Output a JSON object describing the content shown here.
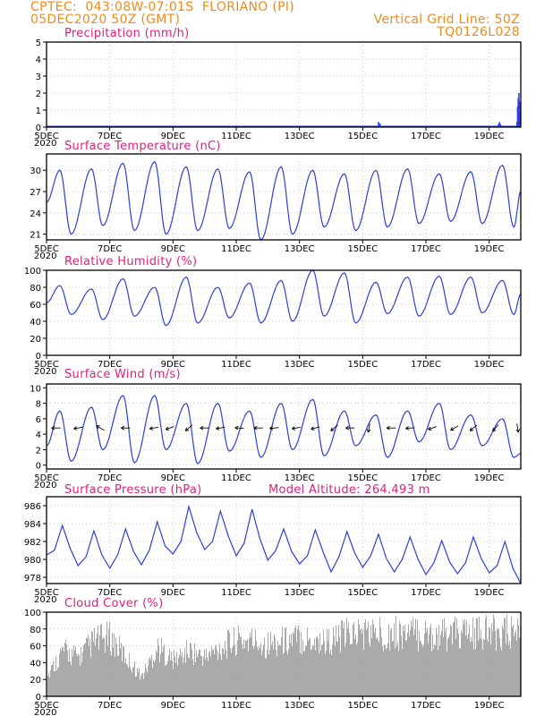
{
  "header": {
    "station_line": "CPTEC:  043:08W-07:01S  FLORIANO (PI)",
    "date_line": "05DEC2020 50Z (GMT)",
    "grid_note": "Vertical Grid Line: 50Z",
    "run_code": "TQ0126L028"
  },
  "x_tick_labels": [
    "5DEC",
    "7DEC",
    "9DEC",
    "11DEC",
    "13DEC",
    "15DEC",
    "17DEC",
    "19DEC"
  ],
  "x_year_label": "2020",
  "colors": {
    "header": "#f08a1e",
    "title": "#e0207a",
    "line": "#2b3fd8",
    "cloud": "#aaaaaa"
  },
  "chart_data": [
    {
      "type": "bar",
      "title": "Precipitation (mm/h)",
      "ylim": [
        0,
        5
      ],
      "yticks": [
        "0",
        "1",
        "2",
        "3",
        "4",
        "5"
      ],
      "x_days": [
        5.0,
        20.0
      ],
      "bars": [
        {
          "x": 15.5,
          "y": 0.3
        },
        {
          "x": 15.55,
          "y": 0.2
        },
        {
          "x": 18.0,
          "y": 0.05
        },
        {
          "x": 19.3,
          "y": 0.2
        },
        {
          "x": 19.33,
          "y": 0.3
        },
        {
          "x": 19.36,
          "y": 0.15
        },
        {
          "x": 19.88,
          "y": 0.3
        },
        {
          "x": 19.9,
          "y": 1.2
        },
        {
          "x": 19.92,
          "y": 1.7
        },
        {
          "x": 19.94,
          "y": 2.0
        },
        {
          "x": 19.96,
          "y": 1.5
        },
        {
          "x": 19.98,
          "y": 1.0
        }
      ]
    },
    {
      "type": "line",
      "title": "Surface Temperature (nC)",
      "ylim": [
        20.2,
        32.3
      ],
      "yticks": [
        "21",
        "24",
        "27",
        "30"
      ],
      "x_days": [
        5.0,
        20.0
      ],
      "maxima": [
        30.0,
        30.2,
        31.0,
        31.2,
        30.5,
        30.2,
        29.8,
        30.5,
        30.0,
        29.5,
        30.0,
        30.2,
        29.5,
        29.8,
        30.7
      ],
      "minima": [
        21.0,
        22.2,
        21.5,
        21.0,
        21.5,
        21.8,
        20.2,
        21.0,
        22.0,
        21.5,
        22.0,
        22.5,
        22.8,
        22.5,
        22.0
      ],
      "start": 25.5,
      "end": 27.0
    },
    {
      "type": "line",
      "title": "Relative Humidity (%)",
      "ylim": [
        0,
        100
      ],
      "yticks": [
        "0",
        "20",
        "40",
        "60",
        "80",
        "100"
      ],
      "x_days": [
        5.0,
        20.0
      ],
      "maxima": [
        82,
        78,
        90,
        80,
        92,
        80,
        85,
        88,
        100,
        97,
        86,
        92,
        93,
        92,
        88
      ],
      "minima": [
        48,
        42,
        46,
        35,
        38,
        44,
        38,
        40,
        46,
        38,
        49,
        46,
        48,
        50,
        48
      ],
      "start": 62,
      "end": 72
    },
    {
      "type": "line",
      "title": "Surface Wind (m/s)",
      "ylim": [
        -0.5,
        10.5
      ],
      "yticks": [
        "0",
        "2",
        "4",
        "6",
        "8",
        "10"
      ],
      "x_days": [
        5.0,
        20.0
      ],
      "maxima": [
        7.0,
        7.5,
        9.0,
        9.0,
        8.0,
        8.0,
        7.0,
        8.0,
        8.5,
        7.0,
        6.5,
        7.0,
        8.0,
        6.5,
        6.0
      ],
      "minima": [
        0.5,
        2.0,
        0.3,
        2.0,
        0.2,
        1.8,
        1.0,
        2.0,
        1.2,
        2.5,
        1.0,
        3.0,
        2.0,
        2.5,
        1.0
      ],
      "start": 2.5,
      "end": 1.5,
      "arrows": [
        {
          "day": 5.3,
          "dir": 270
        },
        {
          "day": 6.0,
          "dir": 260
        },
        {
          "day": 6.7,
          "dir": 300
        },
        {
          "day": 7.5,
          "dir": 270
        },
        {
          "day": 8.4,
          "dir": 260
        },
        {
          "day": 8.9,
          "dir": 250
        },
        {
          "day": 9.5,
          "dir": 230
        },
        {
          "day": 10.0,
          "dir": 270
        },
        {
          "day": 10.5,
          "dir": 260
        },
        {
          "day": 11.1,
          "dir": 275
        },
        {
          "day": 11.7,
          "dir": 270
        },
        {
          "day": 12.2,
          "dir": 265
        },
        {
          "day": 12.9,
          "dir": 260
        },
        {
          "day": 13.5,
          "dir": 255
        },
        {
          "day": 14.1,
          "dir": 230
        },
        {
          "day": 14.6,
          "dir": 270
        },
        {
          "day": 15.2,
          "dir": 190
        },
        {
          "day": 15.9,
          "dir": 270
        },
        {
          "day": 16.5,
          "dir": 265
        },
        {
          "day": 17.2,
          "dir": 250
        },
        {
          "day": 17.9,
          "dir": 240
        },
        {
          "day": 18.5,
          "dir": 230
        },
        {
          "day": 19.2,
          "dir": 220
        },
        {
          "day": 19.9,
          "dir": 170
        }
      ]
    },
    {
      "type": "line",
      "title": "Surface Pressure (hPa)",
      "extra_label": "Model Altitude: 264.493 m",
      "ylim": [
        977.3,
        987.0
      ],
      "yticks": [
        "978",
        "980",
        "982",
        "984",
        "986"
      ],
      "x_days": [
        5.0,
        20.0
      ],
      "points": [
        [
          5.0,
          980.5
        ],
        [
          5.25,
          981.0
        ],
        [
          5.5,
          983.8
        ],
        [
          5.75,
          981.2
        ],
        [
          6.0,
          979.3
        ],
        [
          6.25,
          980.3
        ],
        [
          6.5,
          983.2
        ],
        [
          6.75,
          980.5
        ],
        [
          7.0,
          979.0
        ],
        [
          7.25,
          980.5
        ],
        [
          7.5,
          983.4
        ],
        [
          7.75,
          980.9
        ],
        [
          8.0,
          979.4
        ],
        [
          8.25,
          981.0
        ],
        [
          8.5,
          984.2
        ],
        [
          8.75,
          981.5
        ],
        [
          9.0,
          980.6
        ],
        [
          9.25,
          982.0
        ],
        [
          9.5,
          985.9
        ],
        [
          9.75,
          983.0
        ],
        [
          10.0,
          981.1
        ],
        [
          10.25,
          982.0
        ],
        [
          10.5,
          985.4
        ],
        [
          10.75,
          982.6
        ],
        [
          11.0,
          980.4
        ],
        [
          11.25,
          981.8
        ],
        [
          11.5,
          985.6
        ],
        [
          11.75,
          982.3
        ],
        [
          12.0,
          979.9
        ],
        [
          12.25,
          981.0
        ],
        [
          12.5,
          983.4
        ],
        [
          12.75,
          980.9
        ],
        [
          13.0,
          979.5
        ],
        [
          13.25,
          980.4
        ],
        [
          13.5,
          983.3
        ],
        [
          13.75,
          980.8
        ],
        [
          14.0,
          978.6
        ],
        [
          14.25,
          980.3
        ],
        [
          14.5,
          983.1
        ],
        [
          14.75,
          980.7
        ],
        [
          15.0,
          979.1
        ],
        [
          15.25,
          980.4
        ],
        [
          15.5,
          982.8
        ],
        [
          15.75,
          980.1
        ],
        [
          16.0,
          978.6
        ],
        [
          16.25,
          980.0
        ],
        [
          16.5,
          982.5
        ],
        [
          16.75,
          980.0
        ],
        [
          17.0,
          978.3
        ],
        [
          17.25,
          979.6
        ],
        [
          17.5,
          982.1
        ],
        [
          17.75,
          979.7
        ],
        [
          18.0,
          978.4
        ],
        [
          18.25,
          979.6
        ],
        [
          18.5,
          982.5
        ],
        [
          18.75,
          980.1
        ],
        [
          19.0,
          978.5
        ],
        [
          19.25,
          979.3
        ],
        [
          19.5,
          982.0
        ],
        [
          19.75,
          979.0
        ],
        [
          20.0,
          977.3
        ]
      ]
    },
    {
      "type": "area",
      "title": "Cloud Cover (%)",
      "ylim": [
        0,
        100
      ],
      "yticks": [
        "0",
        "20",
        "40",
        "60",
        "80",
        "100"
      ],
      "x_days": [
        5.0,
        20.0
      ],
      "envelope": [
        [
          5.0,
          30
        ],
        [
          5.5,
          70
        ],
        [
          6.0,
          60
        ],
        [
          6.5,
          85
        ],
        [
          7.0,
          90
        ],
        [
          7.5,
          60
        ],
        [
          8.0,
          30
        ],
        [
          8.5,
          75
        ],
        [
          9.0,
          55
        ],
        [
          9.5,
          70
        ],
        [
          10.0,
          60
        ],
        [
          10.5,
          75
        ],
        [
          11.0,
          85
        ],
        [
          11.5,
          85
        ],
        [
          12.0,
          80
        ],
        [
          12.5,
          85
        ],
        [
          13.0,
          90
        ],
        [
          13.5,
          85
        ],
        [
          14.0,
          85
        ],
        [
          14.5,
          95
        ],
        [
          15.0,
          98
        ],
        [
          15.5,
          96
        ],
        [
          16.0,
          97
        ],
        [
          16.5,
          96
        ],
        [
          17.0,
          95
        ],
        [
          17.5,
          94
        ],
        [
          18.0,
          96
        ],
        [
          18.5,
          95
        ],
        [
          19.0,
          97
        ],
        [
          19.5,
          98
        ],
        [
          20.0,
          98
        ]
      ]
    }
  ]
}
